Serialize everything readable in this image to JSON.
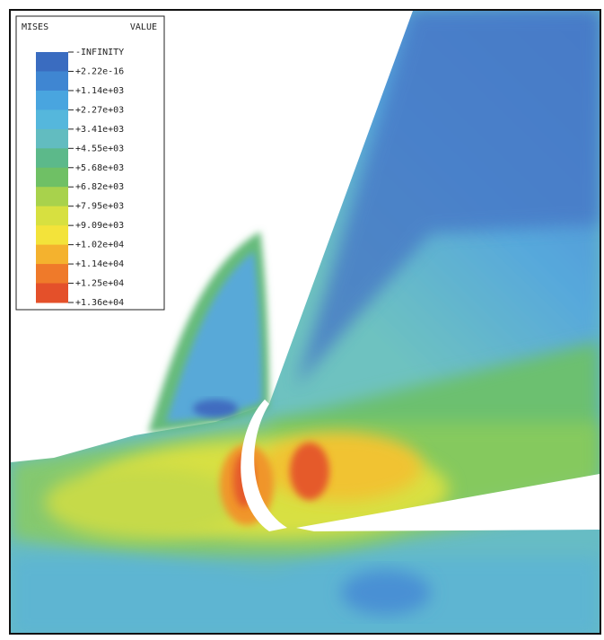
{
  "legend": {
    "title_left": "MISES",
    "title_right": "VALUE",
    "labels": [
      "-INFINITY",
      "+2.22e-16",
      "+1.14e+03",
      "+2.27e+03",
      "+3.41e+03",
      "+4.55e+03",
      "+5.68e+03",
      "+6.82e+03",
      "+7.95e+03",
      "+9.09e+03",
      "+1.02e+04",
      "+1.14e+04",
      "+1.25e+04",
      "+1.36e+04"
    ],
    "colors": [
      "#3a6cc0",
      "#3f86d2",
      "#49a5df",
      "#55b7dc",
      "#62bcc0",
      "#5cb98a",
      "#6fc065",
      "#a8d24c",
      "#d7e040",
      "#f3e33a",
      "#f4b22e",
      "#ef7a2a",
      "#e4502a"
    ]
  }
}
